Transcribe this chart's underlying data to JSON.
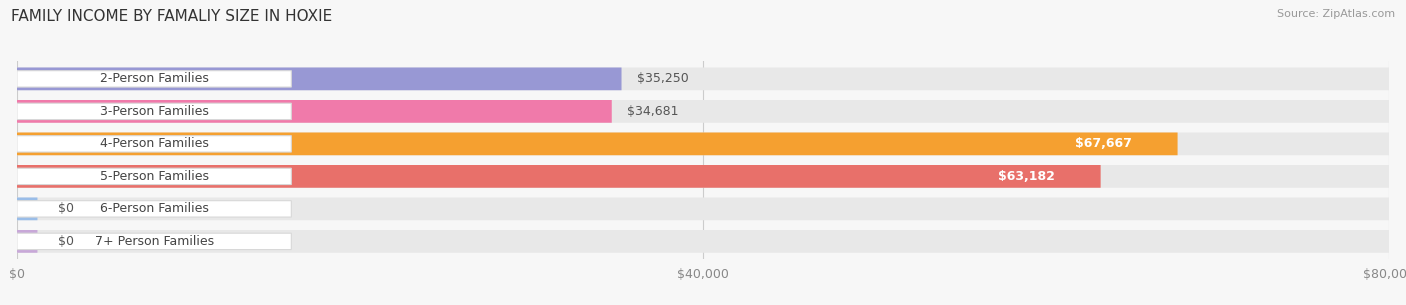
{
  "title": "FAMILY INCOME BY FAMALIY SIZE IN HOXIE",
  "source": "Source: ZipAtlas.com",
  "categories": [
    "2-Person Families",
    "3-Person Families",
    "4-Person Families",
    "5-Person Families",
    "6-Person Families",
    "7+ Person Families"
  ],
  "values": [
    35250,
    34681,
    67667,
    63182,
    0,
    0
  ],
  "bar_colors": [
    "#9898d4",
    "#f07aaa",
    "#f5a030",
    "#e8706a",
    "#9abde8",
    "#c8a8d8"
  ],
  "value_inside": [
    false,
    false,
    true,
    true,
    false,
    false
  ],
  "value_texts": [
    "$35,250",
    "$34,681",
    "$67,667",
    "$63,182",
    "$0",
    "$0"
  ],
  "xlim_max": 80000,
  "xtick_values": [
    0,
    40000,
    80000
  ],
  "xtick_labels": [
    "$0",
    "$40,000",
    "$80,000"
  ],
  "bg_color": "#f7f7f7",
  "bar_track_color": "#e8e8e8",
  "label_bg_color": "#ffffff",
  "label_border_color": "#d8d8d8",
  "title_color": "#333333",
  "source_color": "#999999",
  "outside_value_color": "#555555",
  "title_fontsize": 11,
  "axis_fontsize": 9,
  "bar_label_fontsize": 9,
  "value_fontsize": 9
}
